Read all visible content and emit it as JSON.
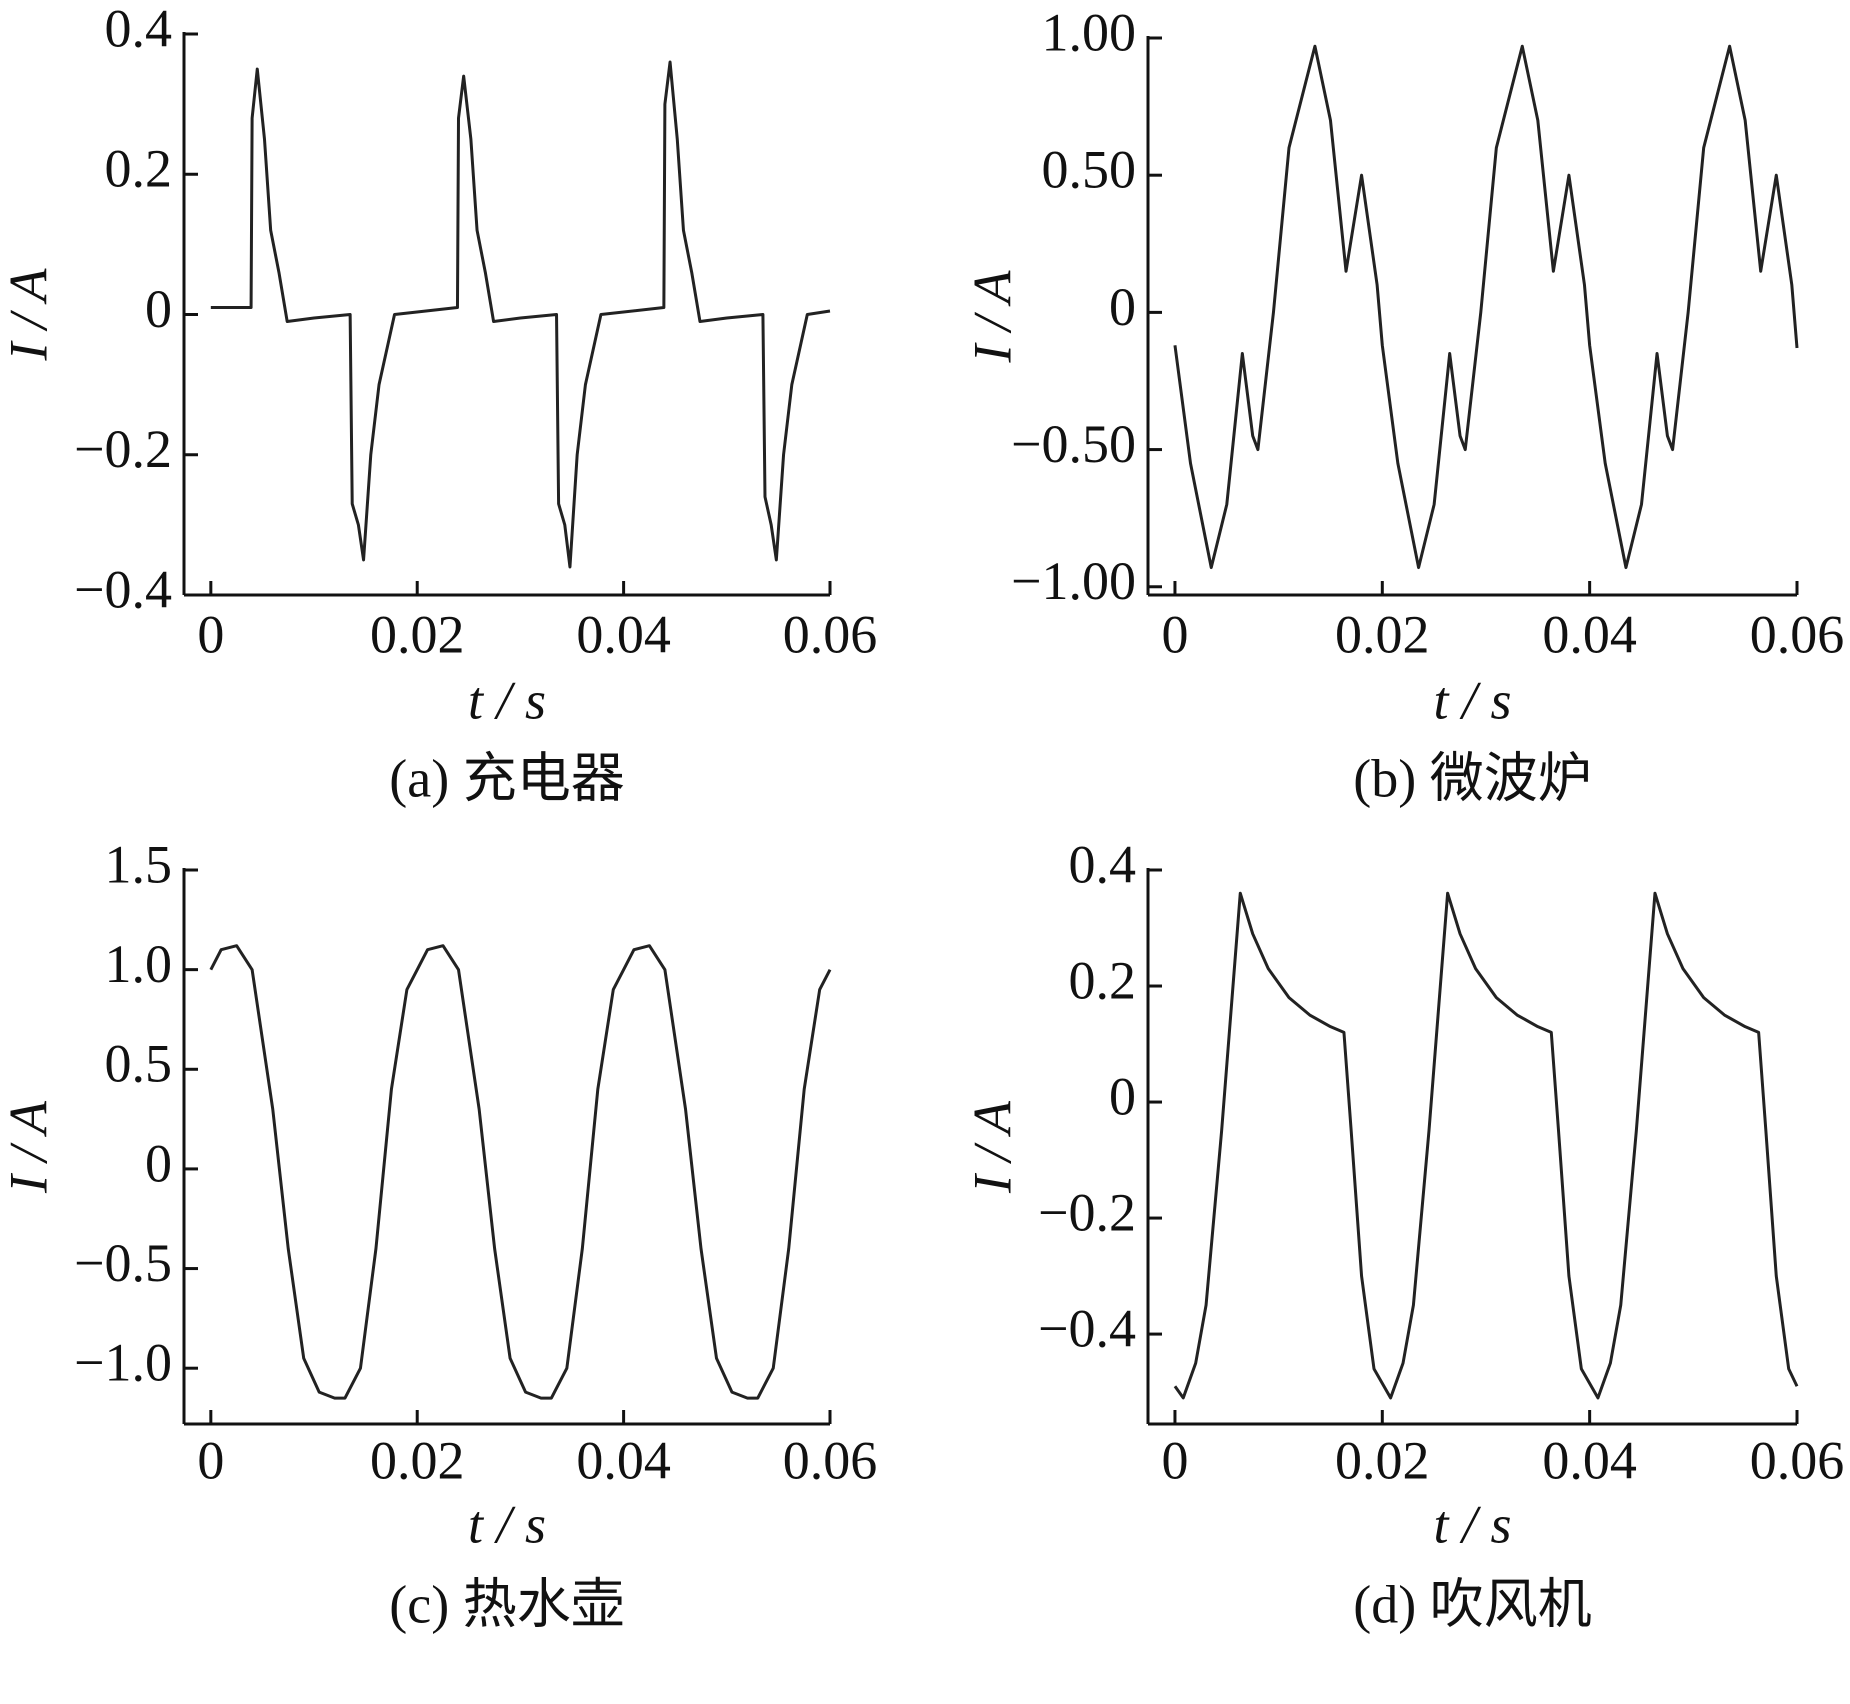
{
  "chart_data": [
    {
      "type": "line",
      "title": "(a)  充电器",
      "xlabel": "t / s",
      "ylabel": "I / A",
      "color": "#222222",
      "xlim": [
        -0.0026,
        0.06
      ],
      "ylim": [
        -0.4,
        0.4
      ],
      "xticks": [
        0,
        0.02,
        0.04,
        0.06
      ],
      "yticks": [
        {
          "value": -0.4,
          "label": "−0.4"
        },
        {
          "value": -0.2,
          "label": "−0.2"
        },
        0,
        0.2,
        0.4
      ],
      "x": [
        0,
        0.0039,
        0.004,
        0.0045,
        0.0052,
        0.0058,
        0.0066,
        0.0074,
        0.01,
        0.0135,
        0.0137,
        0.0143,
        0.0148,
        0.0155,
        0.0163,
        0.0172,
        0.0178,
        0.0239,
        0.024,
        0.0245,
        0.0252,
        0.0258,
        0.0266,
        0.0274,
        0.03,
        0.0335,
        0.0337,
        0.0343,
        0.0348,
        0.0355,
        0.0363,
        0.0372,
        0.0378,
        0.0439,
        0.044,
        0.0445,
        0.0452,
        0.0458,
        0.0466,
        0.0474,
        0.05,
        0.0535,
        0.0537,
        0.0543,
        0.0548,
        0.0555,
        0.0563,
        0.0572,
        0.0578,
        0.06
      ],
      "values": [
        0.01,
        0.01,
        0.28,
        0.35,
        0.25,
        0.12,
        0.06,
        -0.01,
        -0.005,
        0,
        -0.27,
        -0.3,
        -0.35,
        -0.2,
        -0.1,
        -0.04,
        0,
        0.01,
        0.28,
        0.34,
        0.25,
        0.12,
        0.06,
        -0.01,
        -0.005,
        0,
        -0.27,
        -0.3,
        -0.36,
        -0.2,
        -0.1,
        -0.04,
        0,
        0.01,
        0.3,
        0.36,
        0.25,
        0.12,
        0.06,
        -0.01,
        -0.005,
        0,
        -0.26,
        -0.3,
        -0.35,
        -0.2,
        -0.1,
        -0.04,
        0,
        0.005
      ]
    },
    {
      "type": "line",
      "title": "(b)  微波炉",
      "xlabel": "t / s",
      "ylabel": "I / A",
      "color": "#222222",
      "xlim": [
        -0.0026,
        0.06
      ],
      "ylim": [
        -1.03,
        1.0
      ],
      "xticks": [
        0,
        0.02,
        0.04,
        0.06
      ],
      "yticks": [
        {
          "value": -1,
          "label": "−1.00"
        },
        {
          "value": -0.5,
          "label": "−0.50"
        },
        0,
        {
          "value": 0.5,
          "label": "0.50"
        },
        {
          "value": 1,
          "label": "1.00"
        }
      ],
      "x": [
        0,
        0.0015,
        0.0035,
        0.005,
        0.0065,
        0.0075,
        0.008,
        0.0095,
        0.011,
        0.0135,
        0.015,
        0.0165,
        0.018,
        0.0195,
        0.02,
        0.0215,
        0.0235,
        0.025,
        0.0265,
        0.0275,
        0.028,
        0.0295,
        0.031,
        0.0335,
        0.035,
        0.0365,
        0.038,
        0.0395,
        0.04,
        0.0415,
        0.0435,
        0.045,
        0.0465,
        0.0475,
        0.048,
        0.0495,
        0.051,
        0.0535,
        0.055,
        0.0565,
        0.058,
        0.0595,
        0.06
      ],
      "values": [
        -0.12,
        -0.55,
        -0.93,
        -0.7,
        -0.15,
        -0.45,
        -0.5,
        0,
        0.6,
        0.97,
        0.7,
        0.15,
        0.5,
        0.1,
        -0.12,
        -0.55,
        -0.93,
        -0.7,
        -0.15,
        -0.45,
        -0.5,
        0,
        0.6,
        0.97,
        0.7,
        0.15,
        0.5,
        0.1,
        -0.12,
        -0.55,
        -0.93,
        -0.7,
        -0.15,
        -0.45,
        -0.5,
        0,
        0.6,
        0.97,
        0.7,
        0.15,
        0.5,
        0.1,
        -0.13
      ]
    },
    {
      "type": "line",
      "title": "(c)  热水壶",
      "xlabel": "t / s",
      "ylabel": "I / A",
      "color": "#222222",
      "xlim": [
        -0.0026,
        0.06
      ],
      "ylim": [
        -1.28,
        1.5
      ],
      "xticks": [
        0,
        0.02,
        0.04,
        0.06
      ],
      "yticks": [
        {
          "value": -1,
          "label": "−1.0"
        },
        {
          "value": -0.5,
          "label": "−0.5"
        },
        0,
        0.5,
        {
          "value": 1,
          "label": "1.0"
        },
        1.5
      ],
      "x": [
        0,
        0.001,
        0.0025,
        0.004,
        0.006,
        0.0075,
        0.009,
        0.0105,
        0.012,
        0.013,
        0.0145,
        0.016,
        0.0175,
        0.019,
        0.02,
        0.021,
        0.0225,
        0.024,
        0.026,
        0.0275,
        0.029,
        0.0305,
        0.032,
        0.033,
        0.0345,
        0.036,
        0.0375,
        0.039,
        0.04,
        0.041,
        0.0425,
        0.044,
        0.046,
        0.0475,
        0.049,
        0.0505,
        0.052,
        0.053,
        0.0545,
        0.056,
        0.0575,
        0.059,
        0.06
      ],
      "values": [
        1.0,
        1.1,
        1.12,
        1.0,
        0.3,
        -0.4,
        -0.95,
        -1.12,
        -1.15,
        -1.15,
        -1.0,
        -0.4,
        0.4,
        0.9,
        1.0,
        1.1,
        1.12,
        1.0,
        0.3,
        -0.4,
        -0.95,
        -1.12,
        -1.15,
        -1.15,
        -1.0,
        -0.4,
        0.4,
        0.9,
        1.0,
        1.1,
        1.12,
        1.0,
        0.3,
        -0.4,
        -0.95,
        -1.12,
        -1.15,
        -1.15,
        -1.0,
        -0.4,
        0.4,
        0.9,
        1.0
      ]
    },
    {
      "type": "line",
      "title": "(d)  吹风机",
      "xlabel": "t / s",
      "ylabel": "I / A",
      "color": "#222222",
      "xlim": [
        -0.0026,
        0.06
      ],
      "ylim": [
        -0.555,
        0.4
      ],
      "xticks": [
        0,
        0.02,
        0.04,
        0.06
      ],
      "yticks": [
        {
          "value": -0.4,
          "label": "−0.4"
        },
        {
          "value": -0.2,
          "label": "−0.2"
        },
        0,
        0.2,
        0.4
      ],
      "x": [
        0,
        0.0008,
        0.002,
        0.003,
        0.0045,
        0.0063,
        0.0075,
        0.009,
        0.011,
        0.013,
        0.015,
        0.0163,
        0.017,
        0.018,
        0.0192,
        0.0208,
        0.022,
        0.023,
        0.0245,
        0.0263,
        0.0275,
        0.029,
        0.031,
        0.033,
        0.035,
        0.0363,
        0.037,
        0.038,
        0.0392,
        0.0408,
        0.042,
        0.043,
        0.0445,
        0.0463,
        0.0475,
        0.049,
        0.051,
        0.053,
        0.055,
        0.0563,
        0.057,
        0.058,
        0.0592,
        0.06
      ],
      "values": [
        -0.49,
        -0.51,
        -0.45,
        -0.35,
        -0.05,
        0.36,
        0.29,
        0.23,
        0.18,
        0.15,
        0.13,
        0.12,
        -0.05,
        -0.3,
        -0.46,
        -0.51,
        -0.45,
        -0.35,
        -0.05,
        0.36,
        0.29,
        0.23,
        0.18,
        0.15,
        0.13,
        0.12,
        -0.05,
        -0.3,
        -0.46,
        -0.51,
        -0.45,
        -0.35,
        -0.05,
        0.36,
        0.29,
        0.23,
        0.18,
        0.15,
        0.13,
        0.12,
        -0.05,
        -0.3,
        -0.46,
        -0.49
      ]
    }
  ]
}
